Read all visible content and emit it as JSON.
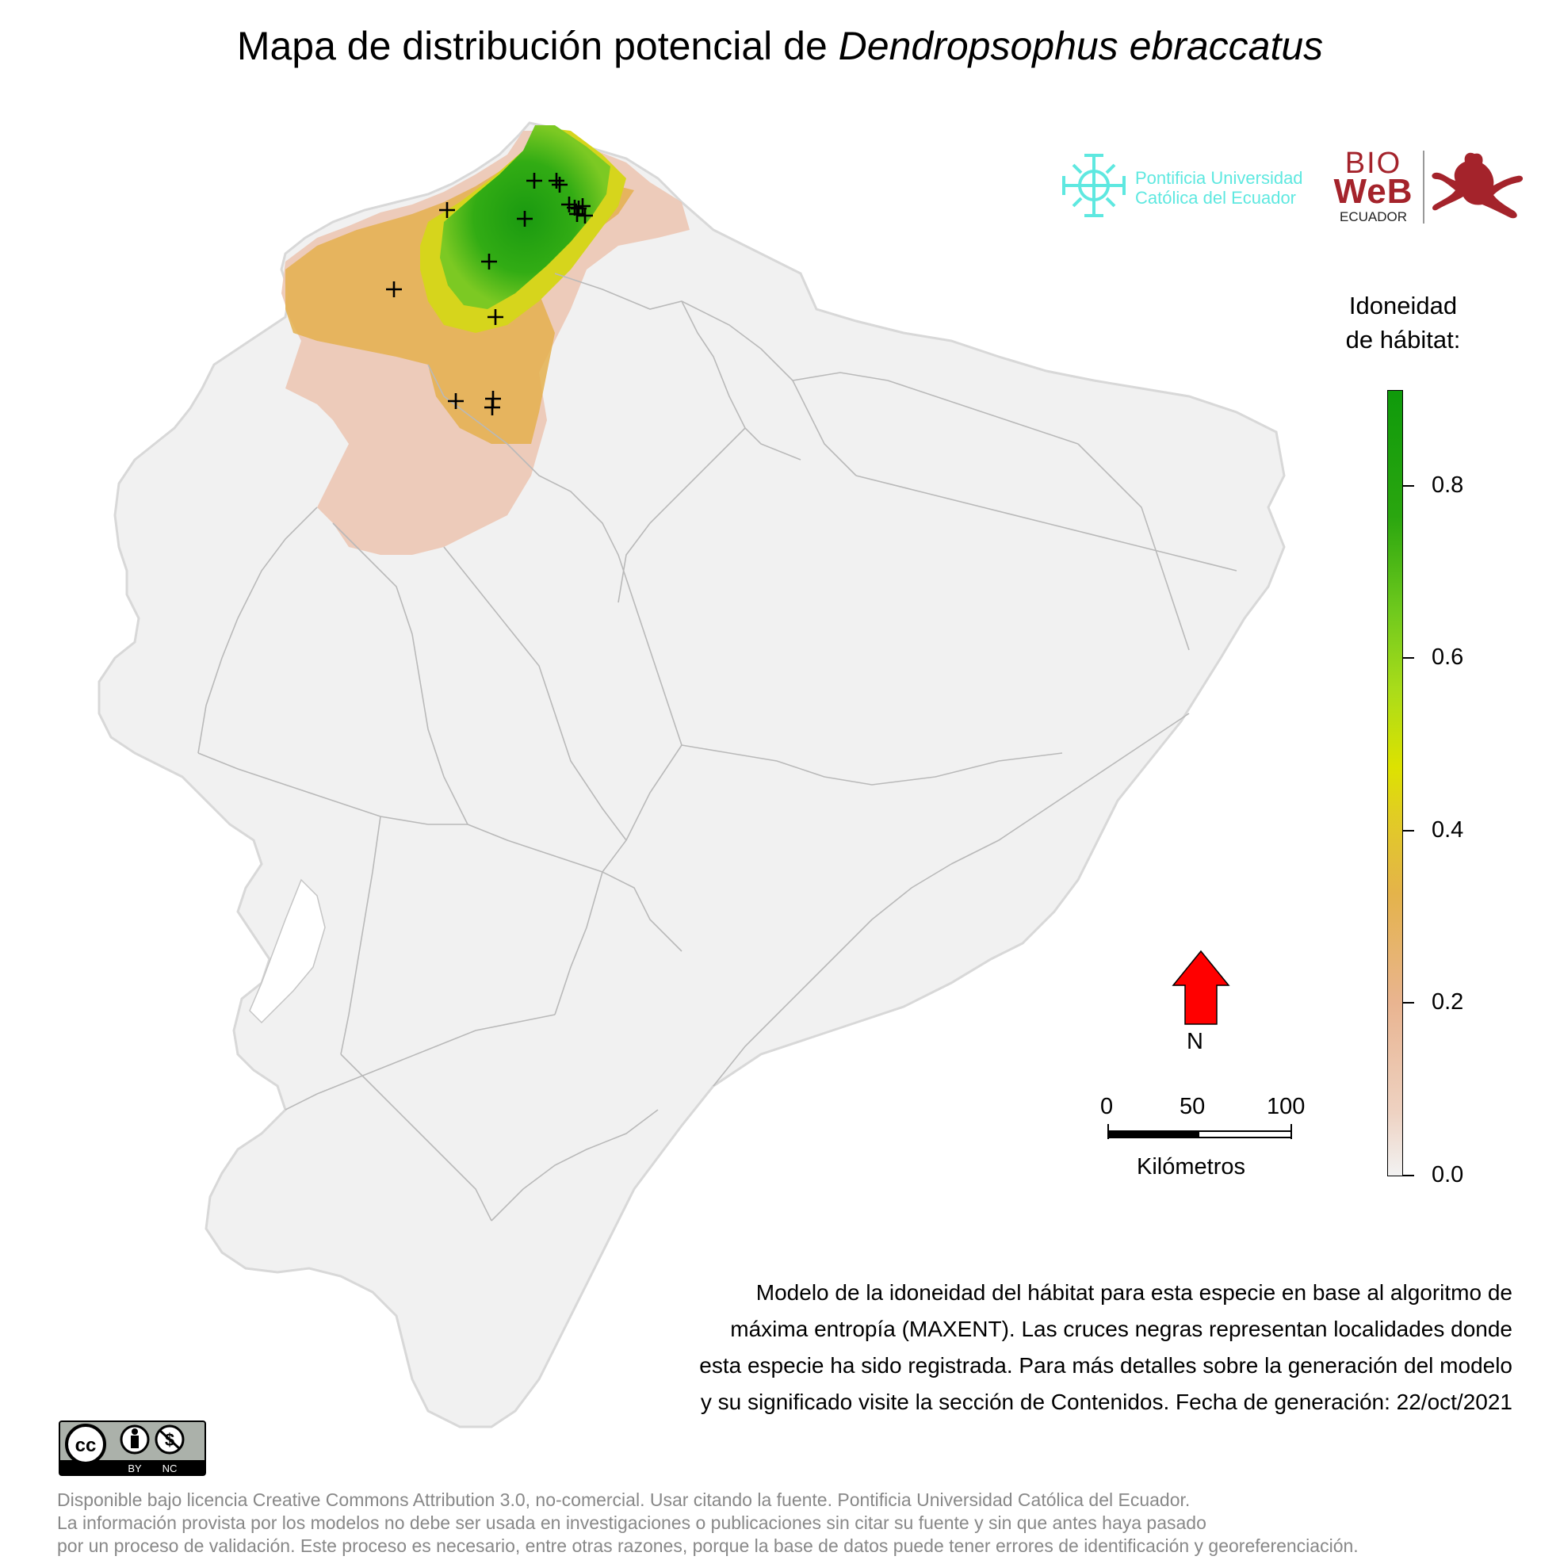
{
  "title": {
    "prefix": "Mapa de distribución potencial de ",
    "species": "Dendropsophus ebraccatus"
  },
  "legend": {
    "title_line1": "Idoneidad",
    "title_line2": "de hábitat:",
    "ticks": [
      "0.0",
      "0.2",
      "0.4",
      "0.6",
      "0.8"
    ],
    "range": [
      0,
      0.91
    ],
    "colors": [
      "#f2f2f2",
      "#e9b490",
      "#e1cd23",
      "#6fc91d",
      "#0f9a0b"
    ]
  },
  "logos": {
    "puce_line1": "Pontificia Universidad",
    "puce_line2": "Católica del Ecuador",
    "bioweb_bio": "BIO",
    "bioweb_web": "WeB",
    "bioweb_ecuador": "ECUADOR"
  },
  "north": {
    "label": "N",
    "arrow_color": "#ff0000"
  },
  "scale_bar": {
    "labels": [
      "0",
      "50",
      "100"
    ],
    "unit": "Kilómetros"
  },
  "caption": {
    "line1": "Modelo de la idoneidad del hábitat para esta especie en base al algoritmo de",
    "line2": "máxima entropía (MAXENT). Las cruces negras representan localidades donde",
    "line3": "esta especie ha sido registrada. Para más detalles sobre la generación del modelo",
    "line4": "y su significado visite la sección de Contenidos. Fecha de generación: 22/oct/2021"
  },
  "cc_badge": {
    "by": "BY",
    "nc": "NC"
  },
  "license": {
    "line1": "Disponible bajo licencia Creative Commons Attribution 3.0, no-comercial. Usar citando la fuente. Pontificia Universidad Católica del Ecuador.",
    "line2": "La información provista por los modelos no debe ser usada en investigaciones o publicaciones sin citar su fuente y sin que antes haya pasado",
    "line3": "por un proceso de validación. Este proceso es necesario, entre otras razones, porque la base de datos puede tener errores de identificación y georeferenciación."
  }
}
